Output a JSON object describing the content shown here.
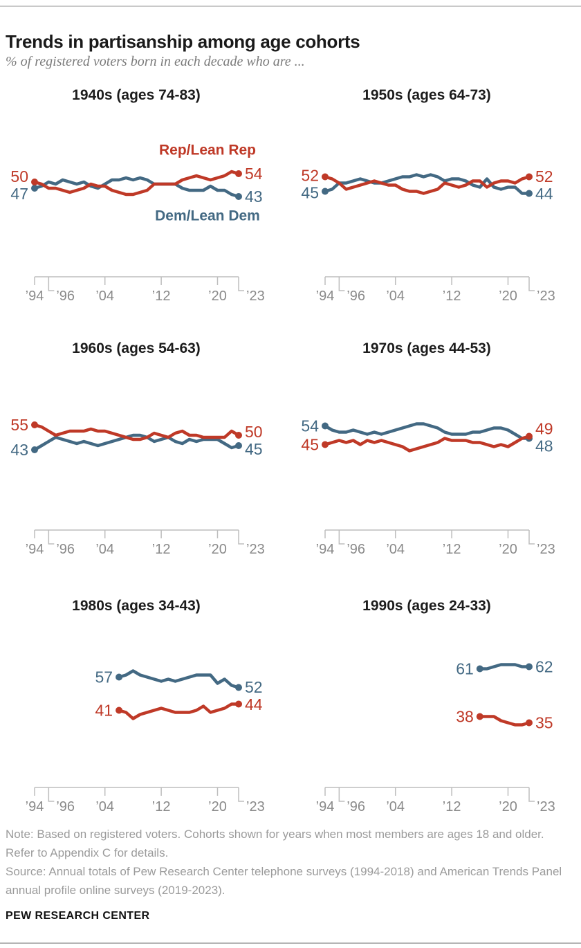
{
  "header": {
    "title": "Trends in partisanship among age cohorts",
    "subtitle": "% of registered voters born in each decade who are ..."
  },
  "colors": {
    "rep": "#bf3927",
    "dem": "#436983",
    "axis_line": "#bdbdbd",
    "axis_text": "#8a8a8a",
    "title_text": "#1c1c1c"
  },
  "x_axis": {
    "start_year": 1994,
    "end_year": 2023,
    "tick_years": [
      1994,
      1996,
      2004,
      2012,
      2020,
      2023
    ],
    "tick_labels": [
      "’94",
      "’96",
      "’04",
      "’12",
      "’20",
      "’23"
    ],
    "elbow_ticks": [
      false,
      true,
      false,
      false,
      false,
      true
    ]
  },
  "chart_data": [
    {
      "type": "line",
      "title": "1940s (ages 74-83)",
      "start_year": 1994,
      "show_legend": true,
      "series": [
        {
          "key": "rep",
          "name": "Rep/Lean Rep",
          "start_label": 50,
          "end_label": 54,
          "values": [
            50,
            49,
            47,
            47,
            46,
            45,
            46,
            47,
            49,
            48,
            48,
            46,
            45,
            44,
            44,
            45,
            46,
            49,
            49,
            49,
            49,
            51,
            52,
            53,
            52,
            51,
            52,
            53,
            55,
            54
          ]
        },
        {
          "key": "dem",
          "name": "Dem/Lean Dem",
          "start_label": 47,
          "end_label": 43,
          "values": [
            47,
            48,
            50,
            49,
            51,
            50,
            49,
            50,
            48,
            47,
            49,
            51,
            51,
            52,
            51,
            52,
            51,
            49,
            49,
            49,
            49,
            47,
            46,
            46,
            46,
            48,
            46,
            46,
            44,
            43
          ]
        }
      ]
    },
    {
      "type": "line",
      "title": "1950s (ages 64-73)",
      "start_year": 1994,
      "show_legend": false,
      "series": [
        {
          "key": "rep",
          "name": "Rep/Lean Rep",
          "start_label": 52,
          "end_label": 52,
          "values": [
            52,
            51,
            49,
            46,
            47,
            48,
            49,
            50,
            49,
            48,
            48,
            46,
            45,
            45,
            44,
            45,
            46,
            49,
            48,
            47,
            48,
            50,
            50,
            47,
            49,
            50,
            50,
            49,
            51,
            52
          ]
        },
        {
          "key": "dem",
          "name": "Dem/Lean Dem",
          "start_label": 45,
          "end_label": 44,
          "values": [
            45,
            46,
            49,
            49,
            50,
            51,
            50,
            49,
            49,
            50,
            51,
            52,
            52,
            53,
            52,
            53,
            52,
            50,
            51,
            51,
            50,
            48,
            47,
            51,
            47,
            46,
            47,
            47,
            44,
            44
          ]
        }
      ]
    },
    {
      "type": "line",
      "title": "1960s (ages 54-63)",
      "start_year": 1994,
      "show_legend": false,
      "series": [
        {
          "key": "rep",
          "name": "Rep/Lean Rep",
          "start_label": 55,
          "end_label": 50,
          "values": [
            55,
            54,
            52,
            50,
            51,
            52,
            52,
            52,
            53,
            52,
            52,
            51,
            50,
            49,
            48,
            48,
            49,
            51,
            50,
            49,
            51,
            52,
            50,
            50,
            49,
            49,
            49,
            49,
            52,
            50
          ]
        },
        {
          "key": "dem",
          "name": "Dem/Lean Dem",
          "start_label": 43,
          "end_label": 45,
          "values": [
            43,
            45,
            47,
            49,
            48,
            47,
            46,
            47,
            46,
            45,
            46,
            47,
            48,
            49,
            50,
            50,
            49,
            47,
            48,
            49,
            47,
            46,
            48,
            47,
            48,
            48,
            48,
            46,
            44,
            45
          ]
        }
      ]
    },
    {
      "type": "line",
      "title": "1970s (ages 44-53)",
      "start_year": 1994,
      "show_legend": false,
      "series": [
        {
          "key": "rep",
          "name": "Rep/Lean Rep",
          "start_label": 45,
          "end_label": 49,
          "values": [
            45,
            46,
            47,
            46,
            47,
            45,
            47,
            46,
            47,
            46,
            45,
            44,
            42,
            43,
            44,
            45,
            46,
            48,
            47,
            47,
            47,
            46,
            46,
            45,
            44,
            45,
            44,
            46,
            48,
            49
          ]
        },
        {
          "key": "dem",
          "name": "Dem/Lean Dem",
          "start_label": 54,
          "end_label": 48,
          "values": [
            54,
            52,
            51,
            51,
            52,
            51,
            50,
            51,
            50,
            51,
            52,
            53,
            54,
            55,
            55,
            54,
            53,
            51,
            50,
            50,
            50,
            51,
            51,
            52,
            53,
            53,
            52,
            50,
            48,
            48
          ]
        }
      ]
    },
    {
      "type": "line",
      "title": "1980s (ages 34-43)",
      "start_year": 2006,
      "show_legend": false,
      "series": [
        {
          "key": "rep",
          "name": "Rep/Lean Rep",
          "start_label": 41,
          "end_label": 44,
          "values": [
            41,
            40,
            37,
            39,
            40,
            41,
            42,
            41,
            40,
            40,
            40,
            41,
            43,
            40,
            41,
            42,
            44,
            44
          ]
        },
        {
          "key": "dem",
          "name": "Dem/Lean Dem",
          "start_label": 57,
          "end_label": 52,
          "values": [
            57,
            58,
            60,
            58,
            57,
            56,
            55,
            56,
            55,
            56,
            57,
            58,
            58,
            58,
            54,
            56,
            53,
            52
          ]
        }
      ]
    },
    {
      "type": "line",
      "title": "1990s (ages 24-33)",
      "start_year": 2016,
      "show_legend": false,
      "series": [
        {
          "key": "rep",
          "name": "Rep/Lean Rep",
          "start_label": 38,
          "end_label": 35,
          "values": [
            38,
            38,
            38,
            36,
            35,
            34,
            34,
            35
          ]
        },
        {
          "key": "dem",
          "name": "Dem/Lean Dem",
          "start_label": 61,
          "end_label": 62,
          "values": [
            61,
            61,
            62,
            63,
            63,
            63,
            62,
            62
          ]
        }
      ]
    }
  ],
  "footer": {
    "note": "Note: Based on registered voters. Cohorts shown for years when most members are ages 18 and older. Refer to Appendix C for details.",
    "source": "Source: Annual totals of Pew Research Center telephone surveys (1994-2018) and American Trends Panel annual profile online surveys (2019-2023).",
    "brand": "PEW RESEARCH CENTER"
  }
}
